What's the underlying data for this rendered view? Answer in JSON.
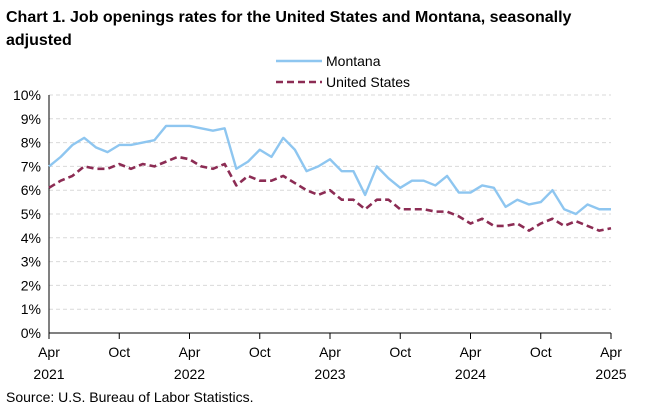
{
  "title": "Chart 1. Job openings rates for the United States and Montana, seasonally adjusted",
  "source": "Source: U.S. Bureau of Labor Statistics.",
  "chart_data": {
    "type": "line",
    "title": "Chart 1. Job openings rates for the United States and Montana, seasonally adjusted",
    "xlabel": "",
    "ylabel": "",
    "ylim": [
      0,
      10
    ],
    "y_ticks": [
      "0%",
      "1%",
      "2%",
      "3%",
      "4%",
      "5%",
      "6%",
      "7%",
      "8%",
      "9%",
      "10%"
    ],
    "x_ticks": [
      {
        "index": 0,
        "month": "Apr",
        "year": "2021"
      },
      {
        "index": 6,
        "month": "Oct",
        "year": ""
      },
      {
        "index": 12,
        "month": "Apr",
        "year": "2022"
      },
      {
        "index": 18,
        "month": "Oct",
        "year": ""
      },
      {
        "index": 24,
        "month": "Apr",
        "year": "2023"
      },
      {
        "index": 30,
        "month": "Oct",
        "year": ""
      },
      {
        "index": 36,
        "month": "Apr",
        "year": "2024"
      },
      {
        "index": 42,
        "month": "Oct",
        "year": ""
      },
      {
        "index": 48,
        "month": "Apr",
        "year": "2025"
      }
    ],
    "grid": true,
    "legend_position": "top-center",
    "series": [
      {
        "name": "Montana",
        "color": "#8ec6f0",
        "style": "solid",
        "values": [
          7.0,
          7.4,
          7.9,
          8.2,
          7.8,
          7.6,
          7.9,
          7.9,
          8.0,
          8.1,
          8.7,
          8.7,
          8.7,
          8.6,
          8.5,
          8.6,
          6.9,
          7.2,
          7.7,
          7.4,
          8.2,
          7.7,
          6.8,
          7.0,
          7.3,
          6.8,
          6.8,
          5.8,
          7.0,
          6.5,
          6.1,
          6.4,
          6.4,
          6.2,
          6.6,
          5.9,
          5.9,
          6.2,
          6.1,
          5.3,
          5.6,
          5.4,
          5.5,
          6.0,
          5.2,
          5.0,
          5.4,
          5.2,
          5.2
        ]
      },
      {
        "name": "United States",
        "color": "#8c2c54",
        "style": "dashed",
        "values": [
          6.1,
          6.4,
          6.6,
          7.0,
          6.9,
          6.9,
          7.1,
          6.9,
          7.1,
          7.0,
          7.2,
          7.4,
          7.3,
          7.0,
          6.9,
          7.1,
          6.2,
          6.6,
          6.4,
          6.4,
          6.6,
          6.3,
          6.0,
          5.8,
          6.0,
          5.6,
          5.6,
          5.2,
          5.6,
          5.6,
          5.2,
          5.2,
          5.2,
          5.1,
          5.1,
          4.9,
          4.6,
          4.8,
          4.5,
          4.5,
          4.6,
          4.3,
          4.6,
          4.8,
          4.5,
          4.7,
          4.5,
          4.3,
          4.4
        ]
      }
    ]
  }
}
